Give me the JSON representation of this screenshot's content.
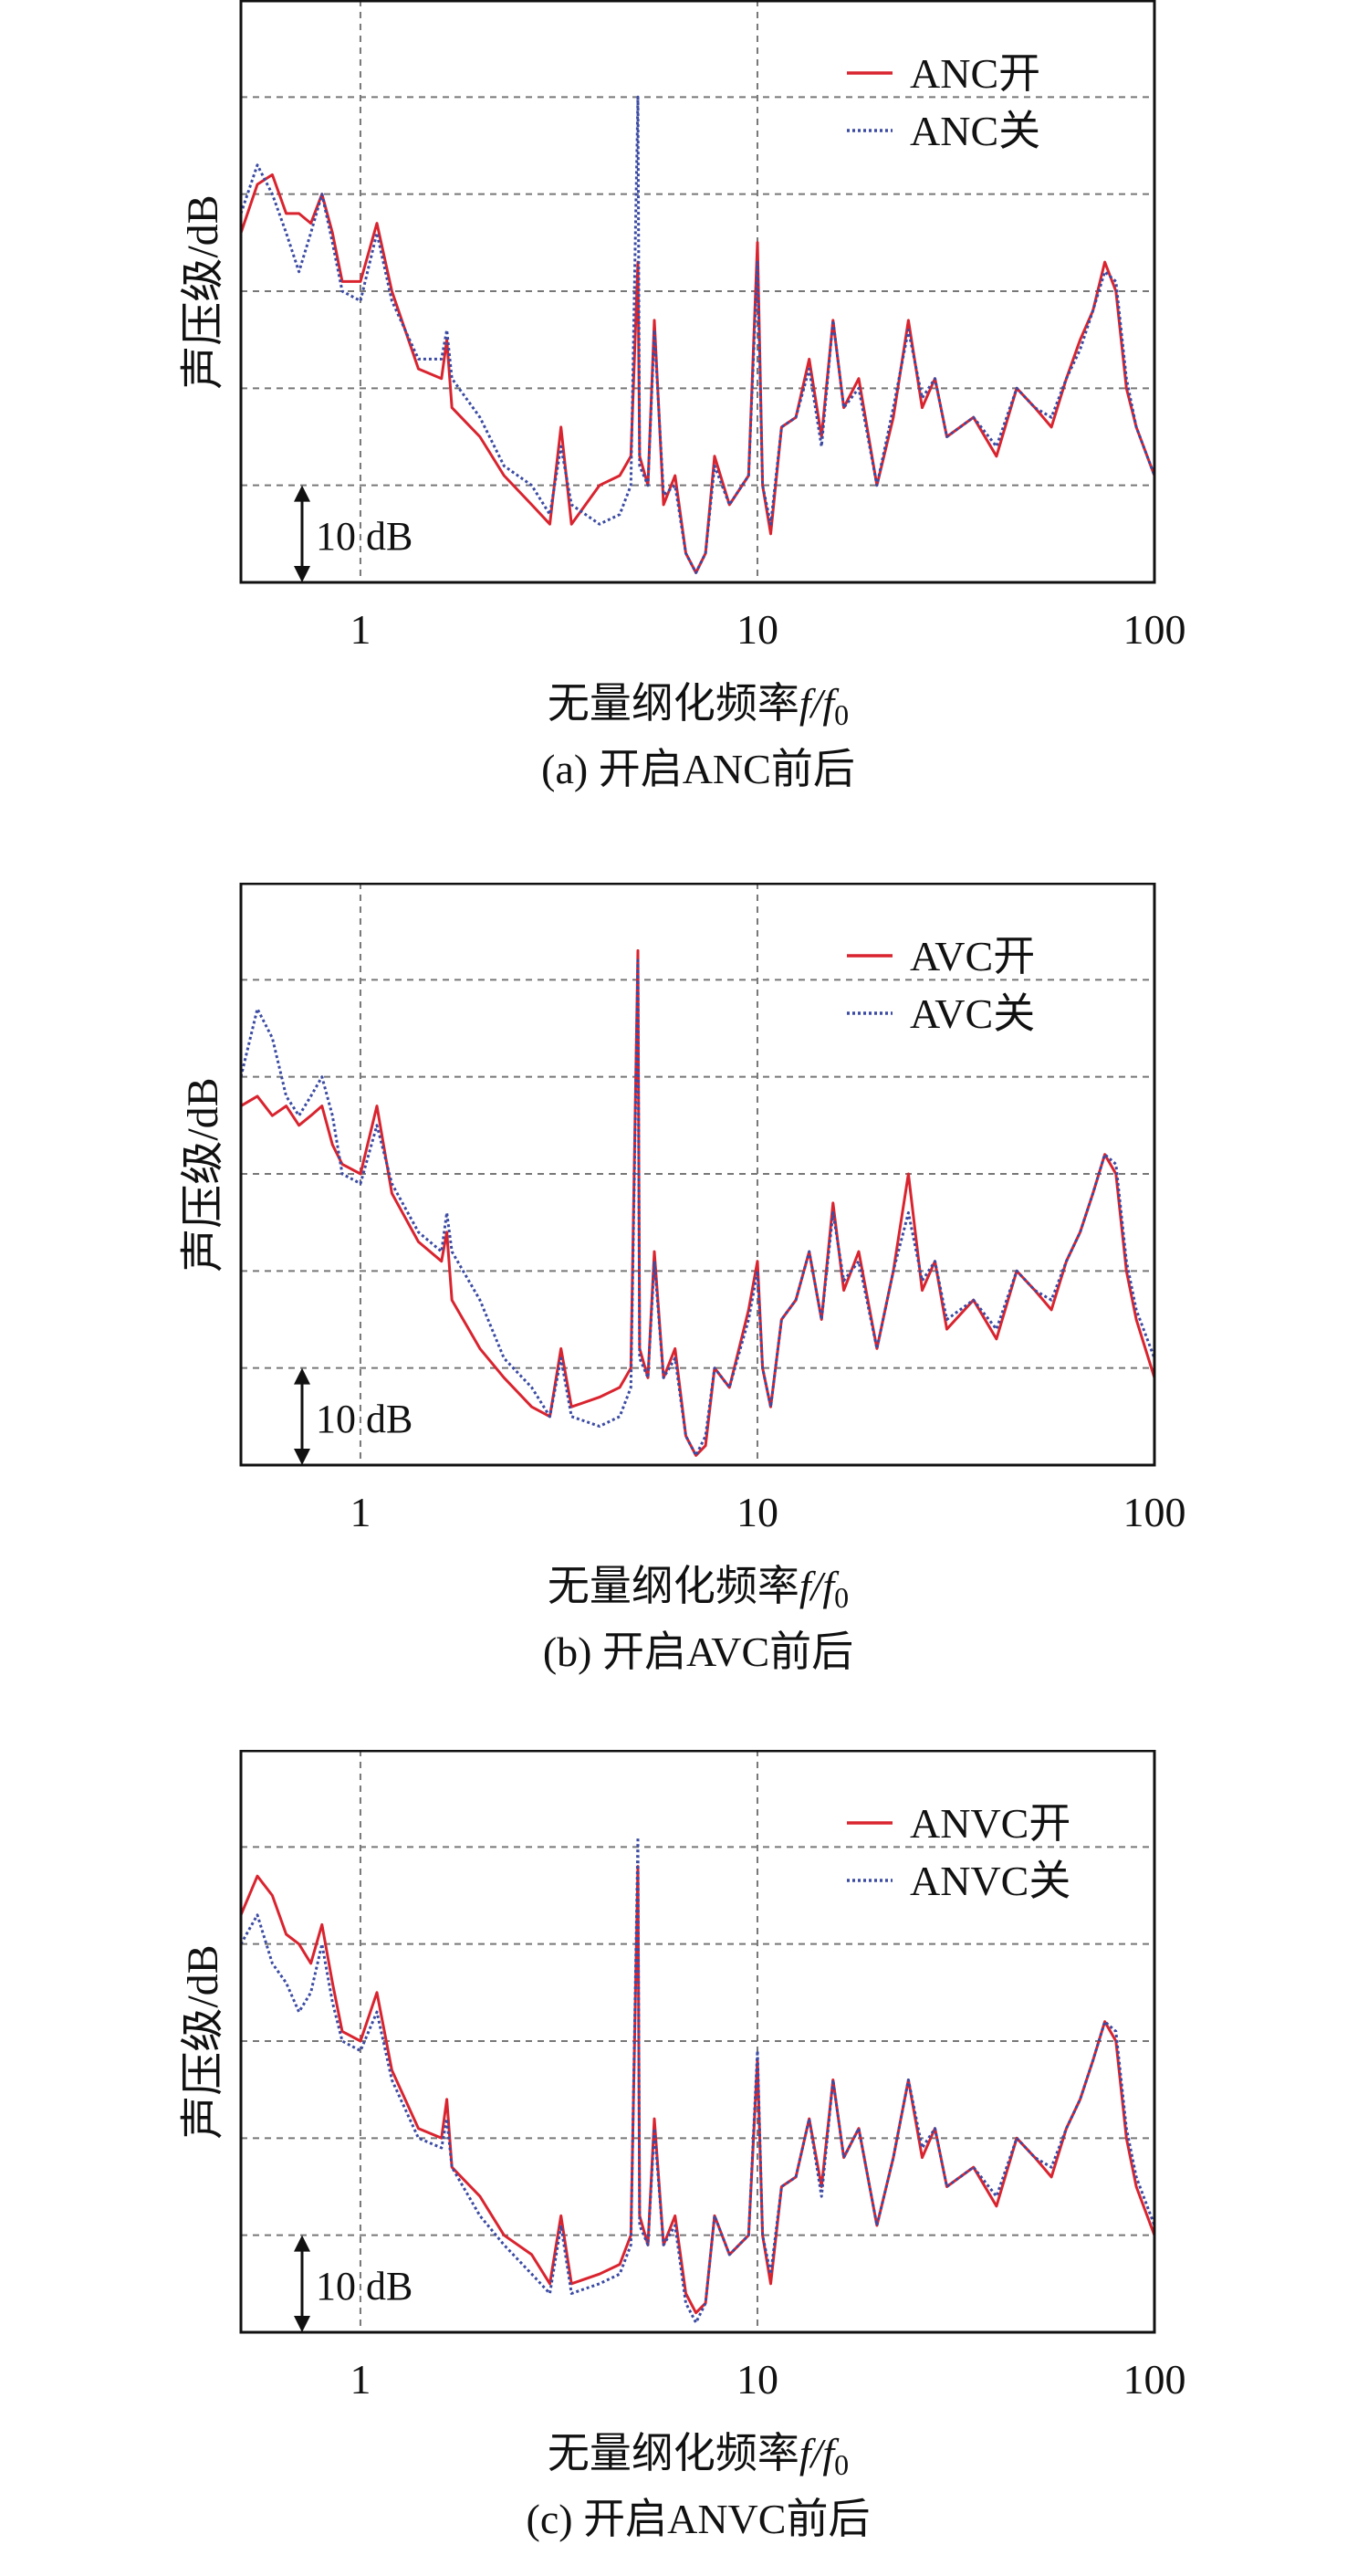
{
  "chart_data": [
    {
      "type": "line",
      "caption": "(a) 开启ANC前后",
      "xlabel": "无量纲化频率",
      "xlabel_symbol": "f/f",
      "xlabel_sub": "0",
      "ylabel": "声压级/dB",
      "xscale": "log",
      "xlim": [
        0.5,
        100
      ],
      "ylim": [
        0,
        60
      ],
      "yunits": "relative dB (10 dB per gridline)",
      "xticks": [
        "1",
        "10",
        "100"
      ],
      "scale_annotation": "10 dB",
      "grid": true,
      "legend_position": "top-right",
      "series": [
        {
          "name": "ANC开",
          "color": "#d9242f",
          "style": "solid",
          "values": [
            36,
            41,
            42,
            38,
            38,
            37,
            40,
            36,
            31,
            31,
            37,
            30,
            22,
            21,
            25,
            18,
            15,
            11,
            8,
            6,
            16,
            6,
            10,
            11,
            13,
            33,
            13,
            10,
            27,
            8,
            11,
            3,
            1,
            3,
            13,
            8,
            11,
            35,
            10,
            5,
            16,
            17,
            23,
            15,
            27,
            18,
            21,
            10,
            17,
            27,
            18,
            21,
            15,
            17,
            13,
            20,
            18,
            16,
            21,
            25,
            28,
            33,
            30,
            20,
            16,
            11
          ]
        },
        {
          "name": "ANC关",
          "color": "#3b4ba3",
          "style": "dotted",
          "values": [
            38,
            43,
            40,
            36,
            32,
            36,
            40,
            35,
            30,
            29,
            36,
            29,
            23,
            23,
            26,
            21,
            17,
            12,
            10,
            7,
            14,
            8,
            6,
            7,
            10,
            50,
            12,
            10,
            26,
            9,
            10,
            3,
            1,
            3,
            12,
            8,
            11,
            33,
            10,
            6,
            16,
            17,
            22,
            14,
            27,
            18,
            20,
            10,
            18,
            26,
            19,
            21,
            15,
            17,
            14,
            20,
            18,
            17,
            21,
            24,
            28,
            32,
            31,
            21,
            16,
            11
          ]
        }
      ]
    },
    {
      "type": "line",
      "caption": "(b) 开启AVC前后",
      "xlabel": "无量纲化频率",
      "xlabel_symbol": "f/f",
      "xlabel_sub": "0",
      "ylabel": "声压级/dB",
      "xscale": "log",
      "xlim": [
        0.5,
        100
      ],
      "ylim": [
        0,
        60
      ],
      "yunits": "relative dB (10 dB per gridline)",
      "xticks": [
        "1",
        "10",
        "100"
      ],
      "scale_annotation": "10 dB",
      "grid": true,
      "legend_position": "top-right",
      "series": [
        {
          "name": "AVC开",
          "color": "#d9242f",
          "style": "solid",
          "values": [
            37,
            38,
            36,
            37,
            35,
            36,
            37,
            33,
            31,
            30,
            37,
            28,
            23,
            21,
            24,
            17,
            12,
            9,
            6,
            5,
            12,
            6,
            7,
            8,
            10,
            53,
            12,
            9,
            22,
            9,
            12,
            3,
            1,
            2,
            10,
            8,
            16,
            21,
            10,
            6,
            15,
            17,
            22,
            15,
            27,
            18,
            22,
            12,
            20,
            30,
            18,
            21,
            14,
            17,
            13,
            20,
            18,
            16,
            21,
            24,
            28,
            32,
            30,
            20,
            15,
            9
          ]
        },
        {
          "name": "AVC关",
          "color": "#3b4ba3",
          "style": "dotted",
          "values": [
            40,
            47,
            44,
            38,
            36,
            38,
            40,
            36,
            30,
            29,
            35,
            29,
            24,
            22,
            26,
            22,
            17,
            11,
            8,
            5,
            11,
            5,
            4,
            5,
            8,
            52,
            11,
            9,
            21,
            9,
            11,
            3,
            1,
            3,
            10,
            8,
            15,
            20,
            10,
            6,
            15,
            17,
            22,
            15,
            26,
            19,
            21,
            12,
            20,
            26,
            19,
            21,
            15,
            17,
            14,
            20,
            18,
            17,
            21,
            24,
            28,
            32,
            31,
            21,
            16,
            11
          ]
        }
      ]
    },
    {
      "type": "line",
      "caption": "(c) 开启ANVC前后",
      "xlabel": "无量纲化频率",
      "xlabel_symbol": "f/f",
      "xlabel_sub": "0",
      "ylabel": "声压级/dB",
      "xscale": "log",
      "xlim": [
        0.5,
        100
      ],
      "ylim": [
        0,
        60
      ],
      "yunits": "relative dB (10 dB per gridline)",
      "xticks": [
        "1",
        "10",
        "100"
      ],
      "scale_annotation": "10 dB",
      "grid": true,
      "legend_position": "top-right",
      "series": [
        {
          "name": "ANVC开",
          "color": "#d9242f",
          "style": "solid",
          "values": [
            43,
            47,
            45,
            41,
            40,
            38,
            42,
            36,
            31,
            30,
            35,
            27,
            21,
            20,
            24,
            17,
            14,
            10,
            8,
            5,
            12,
            5,
            6,
            7,
            10,
            48,
            12,
            9,
            22,
            9,
            12,
            4,
            2,
            3,
            12,
            8,
            10,
            28,
            10,
            5,
            15,
            16,
            22,
            15,
            26,
            18,
            21,
            11,
            18,
            26,
            18,
            21,
            15,
            17,
            13,
            20,
            18,
            16,
            21,
            24,
            28,
            32,
            30,
            20,
            15,
            10
          ]
        },
        {
          "name": "ANVC关",
          "color": "#3b4ba3",
          "style": "dotted",
          "values": [
            40,
            43,
            38,
            36,
            33,
            35,
            40,
            34,
            30,
            29,
            33,
            26,
            20,
            19,
            22,
            17,
            12,
            9,
            6,
            4,
            11,
            4,
            5,
            6,
            9,
            51,
            11,
            9,
            21,
            9,
            11,
            3,
            1,
            3,
            12,
            8,
            10,
            29,
            10,
            6,
            15,
            16,
            22,
            14,
            26,
            18,
            21,
            11,
            18,
            26,
            19,
            21,
            15,
            17,
            14,
            20,
            18,
            17,
            21,
            24,
            28,
            32,
            31,
            21,
            16,
            11
          ]
        }
      ]
    }
  ],
  "x_values": [
    0.5,
    0.55,
    0.6,
    0.65,
    0.7,
    0.75,
    0.8,
    0.85,
    0.9,
    1.0,
    1.1,
    1.2,
    1.4,
    1.6,
    1.65,
    1.7,
    2.0,
    2.3,
    2.7,
    3.0,
    3.2,
    3.4,
    4.0,
    4.5,
    4.8,
    5.0,
    5.05,
    5.3,
    5.5,
    5.8,
    6.2,
    6.6,
    7.0,
    7.4,
    7.8,
    8.5,
    9.5,
    10,
    10.3,
    10.8,
    11.5,
    12.5,
    13.5,
    14.5,
    15.5,
    16.5,
    18,
    20,
    22,
    24,
    26,
    28,
    30,
    35,
    40,
    45,
    50,
    55,
    60,
    65,
    70,
    75,
    80,
    85,
    90,
    100
  ]
}
